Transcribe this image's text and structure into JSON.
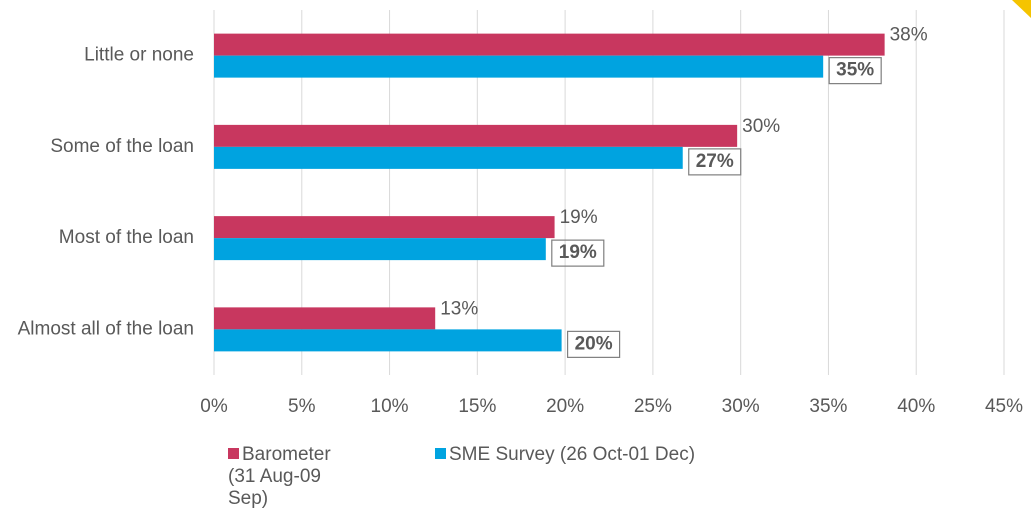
{
  "chart_data": {
    "type": "hbar",
    "categories": [
      "Little or none",
      "Some of the loan",
      "Most of the loan",
      "Almost all of the loan"
    ],
    "series": [
      {
        "name": "Barometer (31 Aug-09 Sep)",
        "color": "#c8375f",
        "values": [
          38.2,
          29.8,
          19.4,
          12.6
        ],
        "value_labels": [
          "38%",
          "30%",
          "19%",
          "13%"
        ]
      },
      {
        "name": "SME Survey (26 Oct-01 Dec)",
        "color": "#00a3e0",
        "values": [
          34.7,
          26.7,
          18.9,
          19.8
        ],
        "value_labels": [
          "35%",
          "27%",
          "19%",
          "20%"
        ]
      }
    ],
    "xlim": [
      0,
      45
    ],
    "xticks": [
      {
        "value": 0,
        "label": "0%"
      },
      {
        "value": 5,
        "label": "5%"
      },
      {
        "value": 10,
        "label": "10%"
      },
      {
        "value": 15,
        "label": "15%"
      },
      {
        "value": 20,
        "label": "20%"
      },
      {
        "value": 25,
        "label": "25%"
      },
      {
        "value": 30,
        "label": "30%"
      },
      {
        "value": 35,
        "label": "35%"
      },
      {
        "value": 40,
        "label": "40%"
      },
      {
        "value": 45,
        "label": "45%"
      }
    ],
    "grid": true
  }
}
